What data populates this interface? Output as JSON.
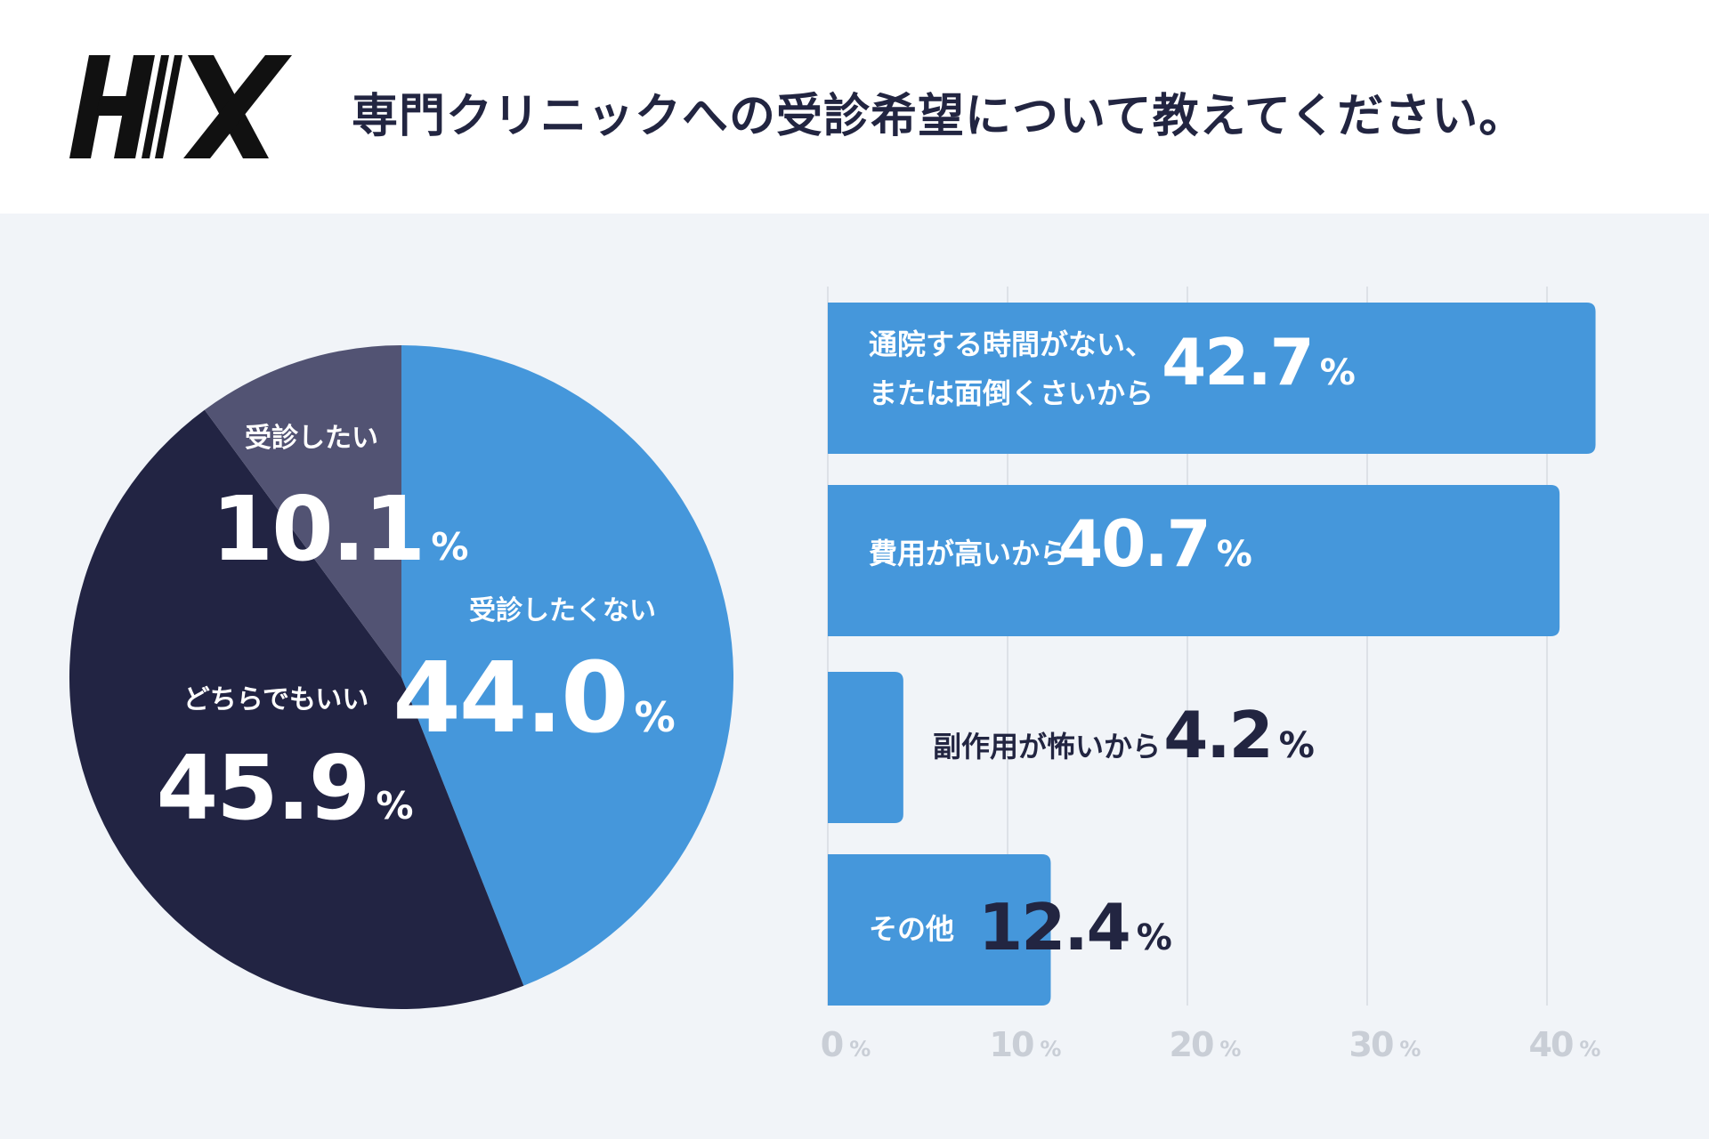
{
  "header": {
    "logo_text": "H//X",
    "title": "専門クリニックへの受診希望について教えてください。"
  },
  "chart_data": [
    {
      "type": "pie",
      "title": "専門クリニックへの受診希望について教えてください。",
      "slices": [
        {
          "label": "受診したくない",
          "value": 44.0,
          "value_text": "44.0",
          "color": "#4597db"
        },
        {
          "label": "どちらでもいい",
          "value": 45.9,
          "value_text": "45.9",
          "color": "#222443"
        },
        {
          "label": "受診したい",
          "value": 10.1,
          "value_text": "10.1",
          "color": "#525373"
        }
      ],
      "unit": "%"
    },
    {
      "type": "bar",
      "orientation": "horizontal",
      "categories": [
        "通院する時間がない、または面倒くさいから",
        "費用が高いから",
        "副作用が怖いから",
        "その他"
      ],
      "category_lines": [
        [
          "通院する時間がない、",
          "または面倒くさいから"
        ],
        [
          "費用が高いから"
        ],
        [
          "副作用が怖いから"
        ],
        [
          "その他"
        ]
      ],
      "values": [
        42.7,
        40.7,
        4.2,
        12.4
      ],
      "value_texts": [
        "42.7",
        "40.7",
        "4.2",
        "12.4"
      ],
      "unit": "%",
      "xlim": [
        0,
        43.2
      ],
      "xticks": [
        0,
        10,
        20,
        30,
        40
      ],
      "xtick_labels": [
        "0",
        "10",
        "20",
        "30",
        "40"
      ],
      "grid": true,
      "bar_color": "#4597db"
    }
  ],
  "colors": {
    "bar": "#4597db",
    "dark_text": "#222541",
    "panel_bg": "#f1f4f8",
    "grid": "#dde1e7",
    "tick": "#c9ced6"
  }
}
